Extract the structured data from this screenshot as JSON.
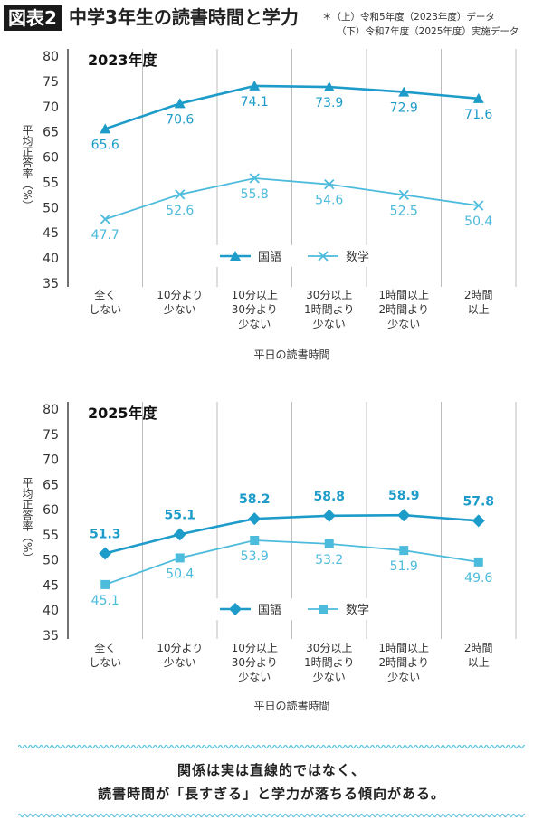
{
  "header": {
    "badge": "図表2",
    "title": "中学3年生の読書時間と学力",
    "note_line1": "＊（上）令和5年度（2023年度）データ",
    "note_line2": "（下）令和7年度（2025年度）実施データ"
  },
  "colors": {
    "japanese": "#1d9cc9",
    "math": "#4cbbdc",
    "grid": "#bdbdbd"
  },
  "chart_data": [
    {
      "type": "line",
      "title": "2023年度",
      "xlabel": "平日の読書時間",
      "ylabel": "平均正答率（%）",
      "ylim": [
        35,
        80
      ],
      "yticks": [
        80,
        75,
        70,
        65,
        60,
        55,
        50,
        45,
        40,
        35
      ],
      "grid": "vertical",
      "legend": "bottom-center",
      "categories": [
        "全く\nしない",
        "10分より\n少ない",
        "10分以上\n30分より\n少ない",
        "30分以上\n1時間より\n少ない",
        "1時間以上\n2時間より\n少ない",
        "2時間\n以上"
      ],
      "series": [
        {
          "name": "国語",
          "marker": "triangle",
          "values": [
            65.6,
            70.6,
            74.1,
            73.9,
            72.9,
            71.6
          ]
        },
        {
          "name": "数学",
          "marker": "x",
          "values": [
            47.7,
            52.6,
            55.8,
            54.6,
            52.5,
            50.4
          ]
        }
      ]
    },
    {
      "type": "line",
      "title": "2025年度",
      "xlabel": "平日の読書時間",
      "ylabel": "平均正答率（%）",
      "ylim": [
        35,
        80
      ],
      "yticks": [
        80,
        75,
        70,
        65,
        60,
        55,
        50,
        45,
        40,
        35
      ],
      "grid": "vertical",
      "legend": "bottom-center",
      "categories": [
        "全く\nしない",
        "10分より\n少ない",
        "10分以上\n30分より\n少ない",
        "30分以上\n1時間より\n少ない",
        "1時間以上\n2時間より\n少ない",
        "2時間\n以上"
      ],
      "series": [
        {
          "name": "国語",
          "marker": "diamond",
          "values": [
            51.3,
            55.1,
            58.2,
            58.8,
            58.9,
            57.8
          ]
        },
        {
          "name": "数学",
          "marker": "square",
          "values": [
            45.1,
            50.4,
            53.9,
            53.2,
            51.9,
            49.6
          ]
        }
      ]
    }
  ],
  "footer": {
    "line1": "関係は実は直線的ではなく、",
    "line2": "読書時間が「長すぎる」と学力が落ちる傾向がある。"
  }
}
